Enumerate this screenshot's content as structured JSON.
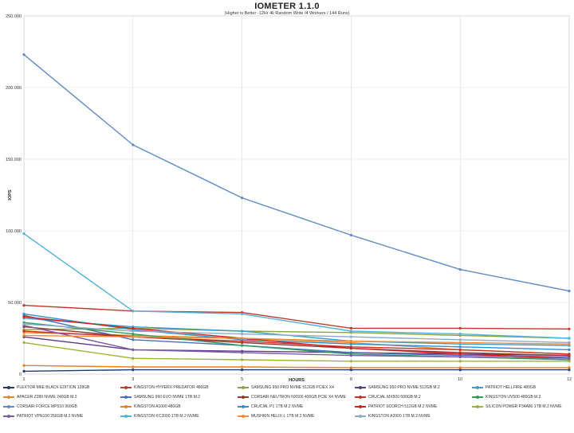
{
  "chart_data": {
    "type": "line",
    "title": "IOMETER 1.1.0",
    "subtitle": "(Higher is Better -12Hr 4k Random Write /4 Workers / 144 Runs)",
    "xlabel": "HOURS",
    "ylabel": "IOPS",
    "categories": [
      "1",
      "3",
      "5",
      "8",
      "10",
      "12"
    ],
    "y_ticks": [
      "0",
      "50.000",
      "100.000",
      "150.000",
      "200.000",
      "250.000"
    ],
    "ylim": [
      0,
      250000
    ],
    "grid": true,
    "legend_position": "bottom",
    "series": [
      {
        "name": "PLEXTOR M6E BLACK EDITION 128GB",
        "color": "#1f3a6e",
        "values": [
          2000,
          3000,
          3000,
          3000,
          3000,
          3000
        ]
      },
      {
        "name": "KINGSTON HYPERX PREDATOR 480GB",
        "color": "#c0392b",
        "values": [
          48000,
          44000,
          43000,
          32000,
          32000,
          31500
        ]
      },
      {
        "name": "SAMSUNG 950 PRO NVME 512GB PCIEX X4",
        "color": "#8aa33a",
        "values": [
          31000,
          32000,
          30000,
          29000,
          27000,
          25000
        ]
      },
      {
        "name": "SAMSUNG 950 PRO NVME 512GB M.2",
        "color": "#5b3a86",
        "values": [
          26000,
          17000,
          16000,
          15000,
          14000,
          13000
        ]
      },
      {
        "name": "PATRIOT HELLFIRE 480GB",
        "color": "#3aa0c8",
        "values": [
          39000,
          33000,
          30000,
          23000,
          21000,
          20000
        ]
      },
      {
        "name": "APACER Z280 NVME 240GB M.2",
        "color": "#e08a2c",
        "values": [
          29000,
          27000,
          25000,
          22000,
          17000,
          14000
        ]
      },
      {
        "name": "SAMSUNG 960 EVO NVME 1TB M.2",
        "color": "#4a6fb5",
        "values": [
          41000,
          24000,
          20000,
          15000,
          13000,
          12000
        ]
      },
      {
        "name": "CORSAIR NEUTRON NX500 400GB PCIE X4 NVME",
        "color": "#8e3b2c",
        "values": [
          33000,
          26000,
          22000,
          18000,
          15000,
          13000
        ]
      },
      {
        "name": "CRUCIAL MX500 500GB M.2",
        "color": "#c9302c",
        "values": [
          30000,
          26000,
          23000,
          19000,
          17000,
          14000
        ]
      },
      {
        "name": "KINGSTON UV500 480GB M.2",
        "color": "#2e9b5f",
        "values": [
          36000,
          28000,
          20000,
          14000,
          12000,
          10000
        ]
      },
      {
        "name": "CORSAIR FORCE MP510 960GB",
        "color": "#5f8bc4",
        "values": [
          223000,
          160000,
          123000,
          97000,
          73000,
          58000
        ]
      },
      {
        "name": "KINGSTON A1000 480GB",
        "color": "#e67e22",
        "values": [
          6000,
          5000,
          5000,
          4500,
          4500,
          4500
        ]
      },
      {
        "name": "CRUCIAL P1 1TB M.2 NVME",
        "color": "#2b8fd6",
        "values": [
          42000,
          31000,
          24000,
          21000,
          19000,
          17000
        ]
      },
      {
        "name": "PATRIOT SCORCH 512GB M.2 NVME",
        "color": "#d62020",
        "values": [
          40000,
          32000,
          25000,
          18000,
          14000,
          11000
        ]
      },
      {
        "name": "SILICON POWER P34A80 1TB M.2 NVME",
        "color": "#a0b030",
        "values": [
          22000,
          11000,
          10000,
          9000,
          9000,
          9000
        ]
      },
      {
        "name": "PATRIOT VPN100 256GB M.2 NVME",
        "color": "#7d5ba6",
        "values": [
          34000,
          17000,
          15000,
          13000,
          12000,
          11000
        ]
      },
      {
        "name": "KINGSTON KC2000 1TB M.2 NVME",
        "color": "#4fb3d9",
        "values": [
          98000,
          44000,
          42000,
          30000,
          28000,
          25000
        ]
      },
      {
        "name": "MUSHKIN HELIX-L 1TB M.2 NVME",
        "color": "#f08a3c",
        "values": [
          27000,
          26000,
          25000,
          23000,
          22000,
          21000
        ]
      },
      {
        "name": "KINGSTON A2000 1TB M.2 NVME",
        "color": "#8fa8c8",
        "values": [
          35000,
          30000,
          28000,
          26000,
          24000,
          22000
        ]
      }
    ]
  }
}
